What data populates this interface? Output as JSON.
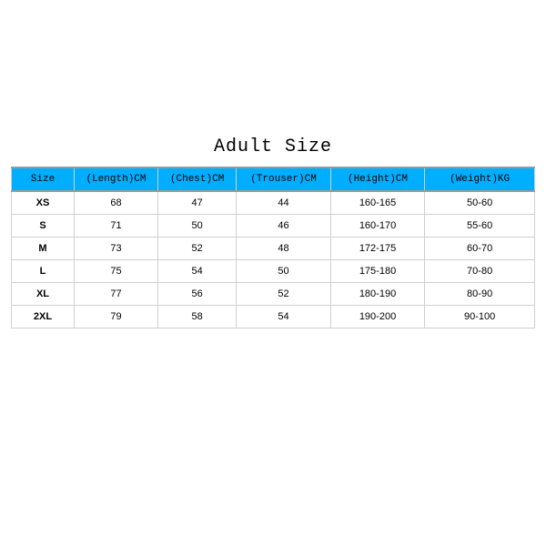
{
  "title": "Adult Size",
  "table": {
    "type": "table",
    "header_bg": "#00aeff",
    "header_color": "#000000",
    "border_color": "#cfcfcf",
    "header_border_color": "#9a9a9a",
    "background_color": "#ffffff",
    "header_font": "Courier New",
    "body_font": "Arial",
    "header_fontsize": 11,
    "body_fontsize": 11,
    "columns": [
      {
        "label": "Size",
        "width_pct": 12
      },
      {
        "label": "(Length)CM",
        "width_pct": 16
      },
      {
        "label": "(Chest)CM",
        "width_pct": 15
      },
      {
        "label": "(Trouser)CM",
        "width_pct": 18
      },
      {
        "label": "(Height)CM",
        "width_pct": 18
      },
      {
        "label": "(Weight)KG",
        "width_pct": 21
      }
    ],
    "rows": [
      [
        "XS",
        "68",
        "47",
        "44",
        "160-165",
        "50-60"
      ],
      [
        "S",
        "71",
        "50",
        "46",
        "160-170",
        "55-60"
      ],
      [
        "M",
        "73",
        "52",
        "48",
        "172-175",
        "60-70"
      ],
      [
        "L",
        "75",
        "54",
        "50",
        "175-180",
        "70-80"
      ],
      [
        "XL",
        "77",
        "56",
        "52",
        "180-190",
        "80-90"
      ],
      [
        "2XL",
        "79",
        "58",
        "54",
        "190-200",
        "90-100"
      ]
    ]
  }
}
